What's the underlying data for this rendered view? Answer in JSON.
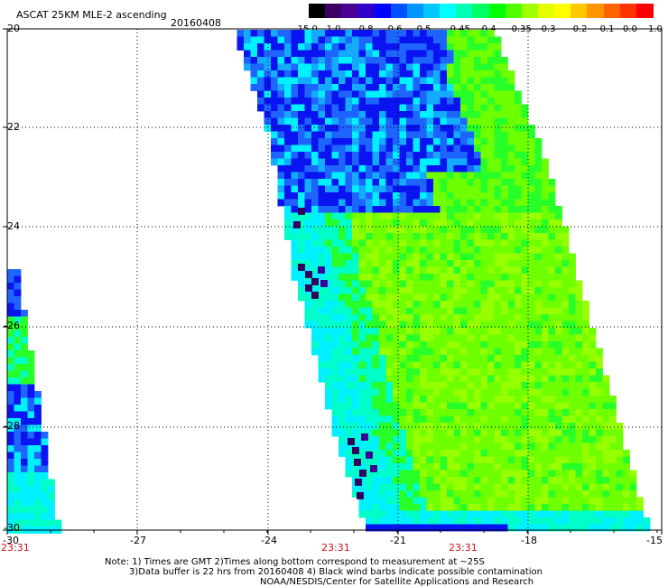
{
  "header": {
    "title": "ASCAT 25KM MLE-2 ascending",
    "date": "20160408"
  },
  "colorbar": {
    "labels": [
      "-15.0",
      "-1.0",
      "-0.8",
      "-0.6",
      "-0.5",
      "-0.45",
      "-0.4",
      "-0.35",
      "-0.3",
      "-0.2",
      "-0.1",
      "0.0",
      "1.0"
    ],
    "colors": [
      "#000000",
      "#3c0064",
      "#4b0096",
      "#3200c8",
      "#0000ff",
      "#0050ff",
      "#0096ff",
      "#00c8ff",
      "#00ffff",
      "#00ffb4",
      "#00ff64",
      "#00ff00",
      "#50ff00",
      "#a0ff00",
      "#e6ff00",
      "#ffff00",
      "#ffc800",
      "#ff9600",
      "#ff6400",
      "#ff3200",
      "#ff0000"
    ]
  },
  "map": {
    "lat_labels": [
      "-20",
      "-22",
      "-24",
      "-26",
      "-28",
      "-30"
    ],
    "lon_labels": [
      "-30",
      "-27",
      "-24",
      "-21",
      "-18",
      "-15"
    ],
    "time_labels": [
      "23:31",
      "23:31",
      "23:31"
    ],
    "palette": {
      "dark": "#32005a",
      "violet": "#3c0096",
      "blue": "#0a14f0",
      "mid_blue": "#1e64ff",
      "sky": "#14aaff",
      "cyan": "#00f0ff",
      "aqua": "#00ffc8",
      "green": "#28ff28",
      "lime": "#6eff00",
      "yellowgreen": "#96ff00"
    }
  },
  "notes": {
    "line1": "Note: 1) Times are GMT 2)Times along bottom correspond to measurement at ~25S",
    "line2": "3)Data buffer is 22 hrs from 20160408 4) Black wind barbs indicate possible contamination",
    "line3": "NOAA/NESDIS/Center for Satellite Applications and Research"
  }
}
